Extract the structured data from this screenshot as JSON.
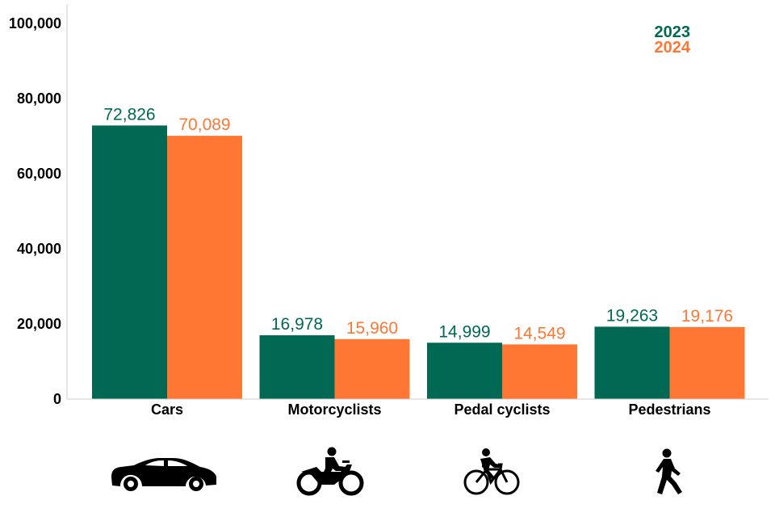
{
  "chart_data": {
    "type": "bar",
    "categories": [
      "Cars",
      "Motorcyclists",
      "Pedal cyclists",
      "Pedestrians"
    ],
    "series": [
      {
        "name": "2023",
        "values": [
          72826,
          16978,
          14999,
          19263
        ],
        "labels": [
          "72,826",
          "16,978",
          "14,999",
          "19,263"
        ],
        "color": "#006853"
      },
      {
        "name": "2024",
        "values": [
          70089,
          15960,
          14549,
          19176
        ],
        "labels": [
          "70,089",
          "15,960",
          "14,549",
          "19,176"
        ],
        "color": "#ff7733"
      }
    ],
    "ylim": [
      0,
      100000
    ],
    "yticks": [
      0,
      20000,
      40000,
      60000,
      80000,
      100000
    ],
    "ytick_labels": [
      "0",
      "20,000",
      "40,000",
      "60,000",
      "80,000",
      "100,000"
    ],
    "legend_position": "top-right",
    "grid": false,
    "category_icons": [
      "car-icon",
      "motorcycle-icon",
      "bicycle-icon",
      "pedestrian-icon"
    ]
  }
}
